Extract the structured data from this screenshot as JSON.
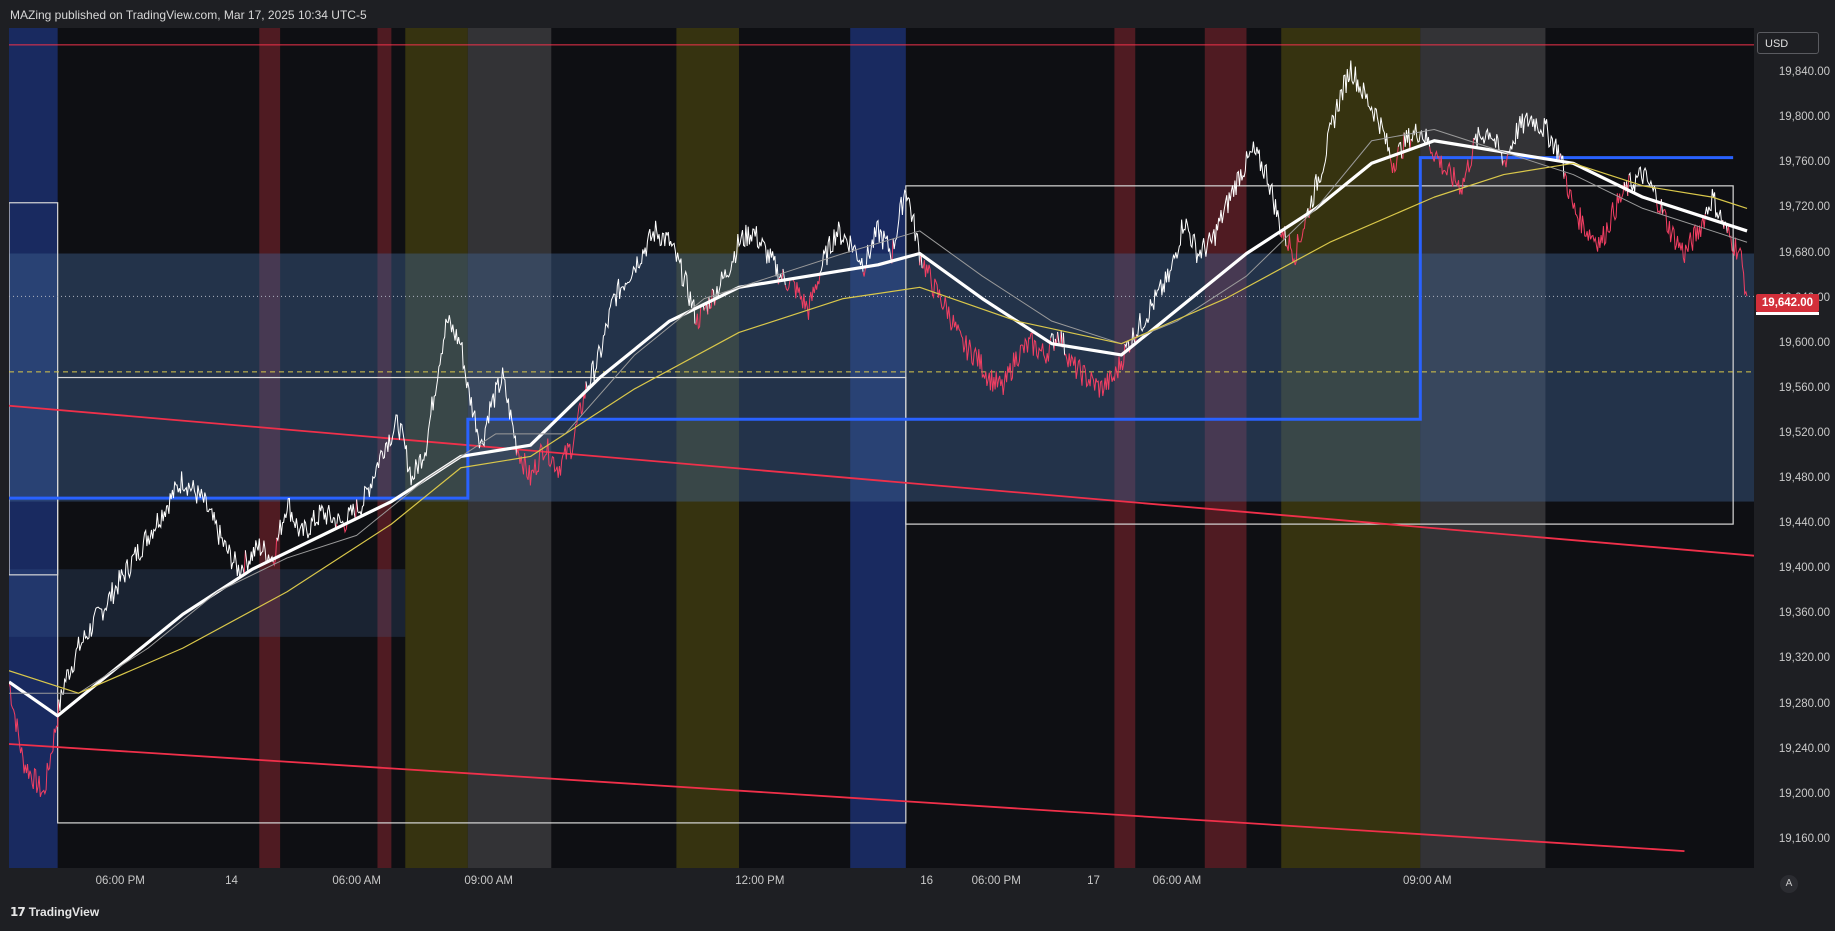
{
  "header": {
    "publisher_text": "MAZing published on TradingView.com, Mar 17, 2025 10:34 UTC-5"
  },
  "footer": {
    "brand": "TradingView",
    "logo_icon": "tradingview-logo-icon"
  },
  "price_axis": {
    "currency": "USD",
    "last_price_label": "19,642.00",
    "tick_labels": [
      "19,840.00",
      "19,800.00",
      "19,760.00",
      "19,720.00",
      "19,680.00",
      "19,640.00",
      "19,600.00",
      "19,560.00",
      "19,520.00",
      "19,480.00",
      "19,440.00",
      "19,400.00",
      "19,360.00",
      "19,320.00",
      "19,280.00",
      "19,240.00",
      "19,200.00",
      "19,160.00"
    ],
    "auto_scale_label": "A"
  },
  "time_axis": {
    "tick_labels": [
      {
        "label": "06:00 PM",
        "bar": 16
      },
      {
        "label": "14",
        "bar": 32
      },
      {
        "label": "06:00 AM",
        "bar": 50
      },
      {
        "label": "09:00 AM",
        "bar": 69
      },
      {
        "label": "12:00 PM",
        "bar": 108
      },
      {
        "label": "16",
        "bar": 132
      },
      {
        "label": "06:00 PM",
        "bar": 142
      },
      {
        "label": "17",
        "bar": 156
      },
      {
        "label": "06:00 AM",
        "bar": 168
      },
      {
        "label": "09:00 AM",
        "bar": 204
      }
    ]
  },
  "colors": {
    "background": "#0e0f13",
    "price_up": "#ffffff",
    "price_down": "#f23f63",
    "ma_fast": "#ffffff",
    "ma_slow": "#9a9a9a",
    "ma_long": "#d9c74a",
    "trendline": "#f0304a",
    "level_box": "#2962ff",
    "range_box": "#d8d8d8",
    "session_blue": "#1b2f6e",
    "session_red": "#5a1d26",
    "session_olive": "#3d3910",
    "session_gray": "#3a3a3d",
    "value_area": "#3f5f8f"
  },
  "chart_data": {
    "type": "line",
    "title": "",
    "xlabel": "",
    "ylabel": "",
    "x_range": [
      0,
      251
    ],
    "ylim": [
      19135,
      19880
    ],
    "last_price": 19642.0,
    "price_anchors": [
      [
        0,
        19300
      ],
      [
        2,
        19230
      ],
      [
        5,
        19200
      ],
      [
        7,
        19270
      ],
      [
        8,
        19300
      ],
      [
        10,
        19330
      ],
      [
        13,
        19360
      ],
      [
        16,
        19390
      ],
      [
        19,
        19420
      ],
      [
        22,
        19450
      ],
      [
        25,
        19480
      ],
      [
        28,
        19460
      ],
      [
        31,
        19420
      ],
      [
        33,
        19400
      ],
      [
        36,
        19420
      ],
      [
        38,
        19410
      ],
      [
        40,
        19460
      ],
      [
        42,
        19430
      ],
      [
        45,
        19450
      ],
      [
        48,
        19440
      ],
      [
        51,
        19460
      ],
      [
        54,
        19510
      ],
      [
        56,
        19530
      ],
      [
        58,
        19480
      ],
      [
        60,
        19510
      ],
      [
        62,
        19590
      ],
      [
        63,
        19620
      ],
      [
        65,
        19600
      ],
      [
        66,
        19560
      ],
      [
        68,
        19510
      ],
      [
        69,
        19540
      ],
      [
        71,
        19570
      ],
      [
        73,
        19510
      ],
      [
        75,
        19480
      ],
      [
        77,
        19510
      ],
      [
        79,
        19490
      ],
      [
        81,
        19510
      ],
      [
        83,
        19560
      ],
      [
        85,
        19590
      ],
      [
        87,
        19640
      ],
      [
        89,
        19660
      ],
      [
        91,
        19680
      ],
      [
        93,
        19700
      ],
      [
        95,
        19690
      ],
      [
        97,
        19660
      ],
      [
        99,
        19620
      ],
      [
        101,
        19640
      ],
      [
        103,
        19660
      ],
      [
        105,
        19690
      ],
      [
        107,
        19700
      ],
      [
        109,
        19680
      ],
      [
        111,
        19660
      ],
      [
        113,
        19650
      ],
      [
        115,
        19630
      ],
      [
        117,
        19670
      ],
      [
        119,
        19700
      ],
      [
        121,
        19690
      ],
      [
        123,
        19670
      ],
      [
        125,
        19700
      ],
      [
        127,
        19680
      ],
      [
        129,
        19740
      ],
      [
        131,
        19680
      ],
      [
        133,
        19650
      ],
      [
        135,
        19630
      ],
      [
        137,
        19600
      ],
      [
        139,
        19590
      ],
      [
        141,
        19570
      ],
      [
        143,
        19560
      ],
      [
        145,
        19590
      ],
      [
        147,
        19600
      ],
      [
        149,
        19590
      ],
      [
        151,
        19610
      ],
      [
        153,
        19580
      ],
      [
        155,
        19570
      ],
      [
        157,
        19560
      ],
      [
        159,
        19570
      ],
      [
        161,
        19600
      ],
      [
        163,
        19620
      ],
      [
        165,
        19640
      ],
      [
        167,
        19660
      ],
      [
        169,
        19710
      ],
      [
        171,
        19680
      ],
      [
        173,
        19690
      ],
      [
        175,
        19720
      ],
      [
        177,
        19750
      ],
      [
        179,
        19770
      ],
      [
        181,
        19750
      ],
      [
        183,
        19700
      ],
      [
        185,
        19680
      ],
      [
        187,
        19720
      ],
      [
        189,
        19760
      ],
      [
        191,
        19810
      ],
      [
        193,
        19845
      ],
      [
        195,
        19820
      ],
      [
        197,
        19800
      ],
      [
        199,
        19760
      ],
      [
        201,
        19780
      ],
      [
        203,
        19790
      ],
      [
        205,
        19770
      ],
      [
        207,
        19750
      ],
      [
        209,
        19740
      ],
      [
        211,
        19780
      ],
      [
        213,
        19790
      ],
      [
        215,
        19760
      ],
      [
        217,
        19790
      ],
      [
        219,
        19800
      ],
      [
        221,
        19790
      ],
      [
        223,
        19770
      ],
      [
        225,
        19720
      ],
      [
        227,
        19700
      ],
      [
        229,
        19690
      ],
      [
        231,
        19720
      ],
      [
        233,
        19740
      ],
      [
        235,
        19750
      ],
      [
        237,
        19730
      ],
      [
        239,
        19700
      ],
      [
        241,
        19680
      ],
      [
        243,
        19700
      ],
      [
        245,
        19730
      ],
      [
        247,
        19700
      ],
      [
        249,
        19680
      ],
      [
        250,
        19642
      ]
    ],
    "moving_averages": [
      {
        "name": "fast",
        "points": [
          [
            0,
            19300
          ],
          [
            7,
            19270
          ],
          [
            15,
            19310
          ],
          [
            25,
            19360
          ],
          [
            35,
            19400
          ],
          [
            45,
            19430
          ],
          [
            55,
            19460
          ],
          [
            65,
            19500
          ],
          [
            75,
            19510
          ],
          [
            85,
            19570
          ],
          [
            95,
            19620
          ],
          [
            105,
            19650
          ],
          [
            115,
            19660
          ],
          [
            125,
            19670
          ],
          [
            131,
            19680
          ],
          [
            140,
            19640
          ],
          [
            150,
            19600
          ],
          [
            160,
            19590
          ],
          [
            168,
            19630
          ],
          [
            178,
            19680
          ],
          [
            188,
            19720
          ],
          [
            196,
            19760
          ],
          [
            205,
            19780
          ],
          [
            215,
            19770
          ],
          [
            225,
            19760
          ],
          [
            235,
            19730
          ],
          [
            245,
            19710
          ],
          [
            250,
            19700
          ]
        ]
      },
      {
        "name": "slow",
        "points": [
          [
            0,
            19290
          ],
          [
            10,
            19290
          ],
          [
            20,
            19330
          ],
          [
            30,
            19380
          ],
          [
            40,
            19410
          ],
          [
            50,
            19430
          ],
          [
            60,
            19480
          ],
          [
            70,
            19520
          ],
          [
            80,
            19520
          ],
          [
            90,
            19590
          ],
          [
            100,
            19640
          ],
          [
            110,
            19660
          ],
          [
            120,
            19680
          ],
          [
            131,
            19700
          ],
          [
            140,
            19660
          ],
          [
            150,
            19620
          ],
          [
            160,
            19600
          ],
          [
            168,
            19620
          ],
          [
            178,
            19660
          ],
          [
            188,
            19720
          ],
          [
            196,
            19780
          ],
          [
            205,
            19790
          ],
          [
            215,
            19770
          ],
          [
            225,
            19750
          ],
          [
            235,
            19720
          ],
          [
            245,
            19700
          ],
          [
            250,
            19690
          ]
        ]
      },
      {
        "name": "long",
        "points": [
          [
            0,
            19310
          ],
          [
            10,
            19290
          ],
          [
            25,
            19330
          ],
          [
            40,
            19380
          ],
          [
            55,
            19440
          ],
          [
            65,
            19490
          ],
          [
            75,
            19500
          ],
          [
            90,
            19560
          ],
          [
            105,
            19610
          ],
          [
            120,
            19640
          ],
          [
            131,
            19650
          ],
          [
            145,
            19620
          ],
          [
            160,
            19600
          ],
          [
            175,
            19640
          ],
          [
            190,
            19690
          ],
          [
            205,
            19730
          ],
          [
            215,
            19750
          ],
          [
            225,
            19760
          ],
          [
            235,
            19740
          ],
          [
            245,
            19730
          ],
          [
            250,
            19720
          ]
        ]
      }
    ],
    "horizontal_levels": [
      {
        "name": "top-red-line",
        "y": 19865,
        "x_from": 0,
        "x_to": 251
      },
      {
        "name": "dotted-last-price",
        "y": 19642,
        "x_from": 0,
        "x_to": 251
      },
      {
        "name": "dashed-yellow-level",
        "y": 19575,
        "x_from": 0,
        "x_to": 251
      }
    ],
    "trendlines": [
      {
        "name": "upper-channel",
        "from": [
          0,
          19545
        ],
        "to": [
          251,
          19412
        ]
      },
      {
        "name": "lower-channel",
        "from": [
          0,
          19245
        ],
        "to": [
          241,
          19150
        ]
      }
    ],
    "level_steps": [
      [
        0,
        19463
      ],
      [
        7,
        19463
      ],
      [
        7,
        19463
      ],
      [
        66,
        19463
      ],
      [
        66,
        19533
      ],
      [
        203,
        19533
      ],
      [
        203,
        19765
      ],
      [
        248,
        19765
      ]
    ],
    "range_boxes": [
      {
        "from": 0,
        "to": 7,
        "high": 19725,
        "low": 19395
      },
      {
        "from": 7,
        "to": 129,
        "high": 19570,
        "low": 19175
      },
      {
        "from": 129,
        "to": 248,
        "high": 19740,
        "low": 19440
      }
    ],
    "sessions": [
      {
        "type": "blue",
        "from": 0,
        "to": 7
      },
      {
        "type": "red",
        "from": 36,
        "to": 39
      },
      {
        "type": "red",
        "from": 53,
        "to": 55
      },
      {
        "type": "olive",
        "from": 57,
        "to": 66
      },
      {
        "type": "gray",
        "from": 66,
        "to": 78
      },
      {
        "type": "olive",
        "from": 96,
        "to": 105
      },
      {
        "type": "blue",
        "from": 121,
        "to": 129
      },
      {
        "type": "red",
        "from": 159,
        "to": 162
      },
      {
        "type": "red",
        "from": 172,
        "to": 178
      },
      {
        "type": "olive",
        "from": 183,
        "to": 203
      },
      {
        "type": "gray",
        "from": 203,
        "to": 221
      }
    ],
    "value_areas": [
      {
        "from": 0,
        "to": 251,
        "high": 19680,
        "low": 19460
      },
      {
        "from": 0,
        "to": 57,
        "high": 19400,
        "low": 19340
      }
    ],
    "legend": "none",
    "grid": false
  }
}
